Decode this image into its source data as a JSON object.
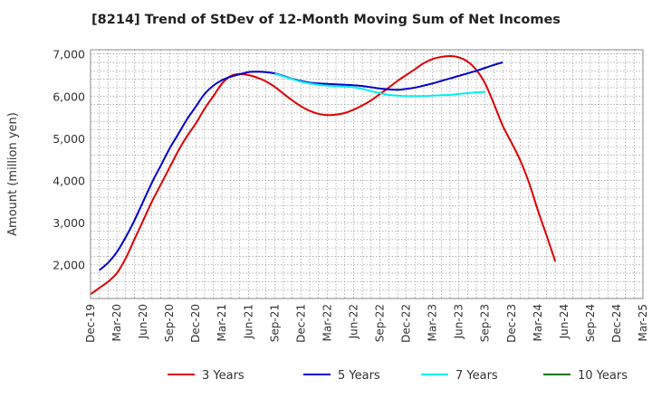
{
  "chart_data": {
    "type": "line",
    "title": "[8214]  Trend of StDev of 12-Month Moving Sum of Net Incomes",
    "xlabel": "",
    "ylabel": "Amount (million yen)",
    "ylim": [
      1200,
      7100
    ],
    "y_ticks": [
      2000,
      3000,
      4000,
      5000,
      6000,
      7000
    ],
    "y_tick_labels": [
      "2,000",
      "3,000",
      "4,000",
      "5,000",
      "6,000",
      "7,000"
    ],
    "x_ticks": [
      "Dec-19",
      "Mar-20",
      "Jun-20",
      "Sep-20",
      "Dec-20",
      "Mar-21",
      "Jun-21",
      "Sep-21",
      "Dec-21",
      "Mar-22",
      "Jun-22",
      "Sep-22",
      "Dec-22",
      "Mar-23",
      "Jun-23",
      "Sep-23",
      "Dec-23",
      "Mar-24",
      "Jun-24",
      "Sep-24",
      "Dec-24",
      "Mar-25"
    ],
    "grid": true,
    "legend_position": "bottom",
    "series": [
      {
        "name": "3 Years",
        "color": "#dd0000",
        "points": [
          [
            "2019-12",
            1300
          ],
          [
            "2020-01",
            1450
          ],
          [
            "2020-02",
            1600
          ],
          [
            "2020-03",
            1800
          ],
          [
            "2020-04",
            2150
          ],
          [
            "2020-05",
            2600
          ],
          [
            "2020-06",
            3050
          ],
          [
            "2020-07",
            3500
          ],
          [
            "2020-08",
            3900
          ],
          [
            "2020-09",
            4300
          ],
          [
            "2020-10",
            4700
          ],
          [
            "2020-11",
            5050
          ],
          [
            "2020-12",
            5350
          ],
          [
            "2021-01",
            5700
          ],
          [
            "2021-02",
            6000
          ],
          [
            "2021-03",
            6300
          ],
          [
            "2021-04",
            6480
          ],
          [
            "2021-05",
            6520
          ],
          [
            "2021-06",
            6500
          ],
          [
            "2021-07",
            6440
          ],
          [
            "2021-08",
            6350
          ],
          [
            "2021-09",
            6220
          ],
          [
            "2021-10",
            6060
          ],
          [
            "2021-11",
            5900
          ],
          [
            "2021-12",
            5760
          ],
          [
            "2021-13",
            5650
          ],
          [
            "2022-02",
            5580
          ],
          [
            "2022-03",
            5550
          ],
          [
            "2022-04",
            5560
          ],
          [
            "2022-05",
            5600
          ],
          [
            "2022-06",
            5680
          ],
          [
            "2022-07",
            5780
          ],
          [
            "2022-08",
            5900
          ],
          [
            "2022-09",
            6050
          ],
          [
            "2022-10",
            6200
          ],
          [
            "2022-11",
            6360
          ],
          [
            "2022-12",
            6500
          ],
          [
            "2023-01",
            6640
          ],
          [
            "2023-02",
            6780
          ],
          [
            "2023-03",
            6880
          ],
          [
            "2023-04",
            6930
          ],
          [
            "2023-05",
            6950
          ],
          [
            "2023-06",
            6920
          ],
          [
            "2023-07",
            6820
          ],
          [
            "2023-08",
            6620
          ],
          [
            "2023-09",
            6300
          ],
          [
            "2023-10",
            5820
          ],
          [
            "2023-11",
            5300
          ],
          [
            "2023-12",
            4900
          ],
          [
            "2024-01",
            4480
          ],
          [
            "2024-02",
            3950
          ],
          [
            "2024-03",
            3300
          ],
          [
            "2024-04",
            2700
          ],
          [
            "2024-05",
            2080
          ]
        ]
      },
      {
        "name": "5 Years",
        "color": "#0000cc",
        "points": [
          [
            "2020-01",
            1870
          ],
          [
            "2020-02",
            2050
          ],
          [
            "2020-03",
            2300
          ],
          [
            "2020-04",
            2650
          ],
          [
            "2020-05",
            3050
          ],
          [
            "2020-06",
            3500
          ],
          [
            "2020-07",
            3950
          ],
          [
            "2020-08",
            4350
          ],
          [
            "2020-09",
            4750
          ],
          [
            "2020-10",
            5100
          ],
          [
            "2020-11",
            5450
          ],
          [
            "2020-12",
            5750
          ],
          [
            "2021-01",
            6050
          ],
          [
            "2021-02",
            6250
          ],
          [
            "2021-03",
            6380
          ],
          [
            "2021-04",
            6460
          ],
          [
            "2021-05",
            6520
          ],
          [
            "2021-06",
            6570
          ],
          [
            "2021-07",
            6580
          ],
          [
            "2021-08",
            6570
          ],
          [
            "2021-09",
            6540
          ],
          [
            "2021-10",
            6480
          ],
          [
            "2021-11",
            6410
          ],
          [
            "2021-12",
            6360
          ],
          [
            "2022-01",
            6320
          ],
          [
            "2022-02",
            6300
          ],
          [
            "2022-03",
            6290
          ],
          [
            "2022-04",
            6280
          ],
          [
            "2022-05",
            6270
          ],
          [
            "2022-06",
            6260
          ],
          [
            "2022-07",
            6240
          ],
          [
            "2022-08",
            6210
          ],
          [
            "2022-09",
            6180
          ],
          [
            "2022-10",
            6160
          ],
          [
            "2022-11",
            6150
          ],
          [
            "2022-12",
            6170
          ],
          [
            "2023-01",
            6200
          ],
          [
            "2023-02",
            6250
          ],
          [
            "2023-03",
            6300
          ],
          [
            "2023-04",
            6360
          ],
          [
            "2023-05",
            6420
          ],
          [
            "2023-06",
            6480
          ],
          [
            "2023-07",
            6540
          ],
          [
            "2023-08",
            6600
          ],
          [
            "2023-09",
            6670
          ],
          [
            "2023-10",
            6740
          ],
          [
            "2023-11",
            6800
          ]
        ]
      },
      {
        "name": "7 Years",
        "color": "#00eeee",
        "points": [
          [
            "2021-09",
            6530
          ],
          [
            "2021-10",
            6470
          ],
          [
            "2021-11",
            6400
          ],
          [
            "2021-12",
            6340
          ],
          [
            "2022-01",
            6300
          ],
          [
            "2022-02",
            6270
          ],
          [
            "2022-03",
            6250
          ],
          [
            "2022-04",
            6240
          ],
          [
            "2022-05",
            6230
          ],
          [
            "2022-06",
            6210
          ],
          [
            "2022-07",
            6170
          ],
          [
            "2022-08",
            6120
          ],
          [
            "2022-09",
            6070
          ],
          [
            "2022-10",
            6030
          ],
          [
            "2022-11",
            6010
          ],
          [
            "2022-12",
            6000
          ],
          [
            "2023-01",
            6000
          ],
          [
            "2023-02",
            6000
          ],
          [
            "2023-03",
            6010
          ],
          [
            "2023-04",
            6020
          ],
          [
            "2023-05",
            6030
          ],
          [
            "2023-06",
            6050
          ],
          [
            "2023-07",
            6070
          ],
          [
            "2023-08",
            6090
          ],
          [
            "2023-09",
            6100
          ]
        ]
      },
      {
        "name": "10 Years",
        "color": "#007700",
        "points": []
      }
    ]
  }
}
